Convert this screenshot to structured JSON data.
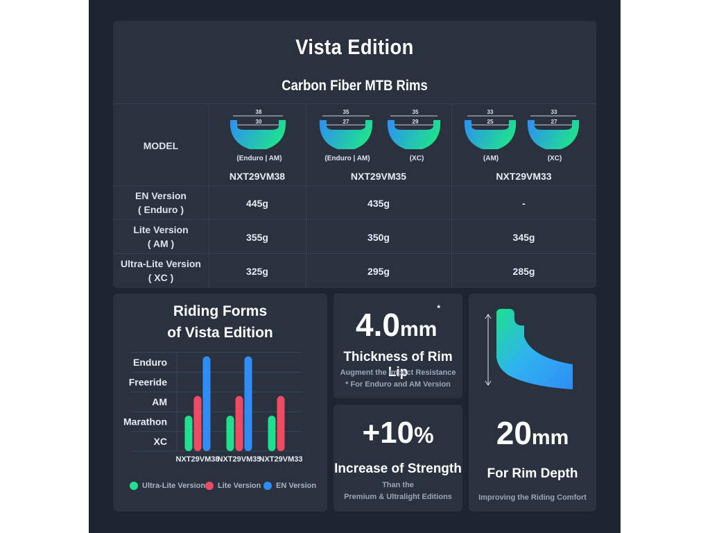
{
  "poster": {
    "title": "Vista Edition",
    "subtitle": "Carbon Fiber MTB Rims"
  },
  "spec_table": {
    "model_header": "MODEL",
    "models": [
      {
        "name": "NXT29VM38",
        "rims": [
          {
            "outer": "38",
            "inner": "30",
            "use": "(Enduro | AM)"
          }
        ]
      },
      {
        "name": "NXT29VM35",
        "rims": [
          {
            "outer": "35",
            "inner": "27",
            "use": "(Enduro | AM)"
          },
          {
            "outer": "35",
            "inner": "29",
            "use": "(XC)"
          }
        ]
      },
      {
        "name": "NXT29VM33",
        "rims": [
          {
            "outer": "33",
            "inner": "25",
            "use": "(AM)"
          },
          {
            "outer": "33",
            "inner": "27",
            "use": "(XC)"
          }
        ]
      }
    ],
    "rows": [
      {
        "label1": "EN Version",
        "label2": "( Enduro )",
        "values": [
          "445g",
          "435g",
          "-"
        ]
      },
      {
        "label1": "Lite Version",
        "label2": "( AM )",
        "values": [
          "355g",
          "350g",
          "345g"
        ]
      },
      {
        "label1": "Ultra-Lite Version",
        "label2": "( XC )",
        "values": [
          "325g",
          "295g",
          "285g"
        ]
      }
    ]
  },
  "chart_data": {
    "type": "bar",
    "title": "Riding Forms of Vista Edition",
    "title_line1": "Riding Forms",
    "title_line2": "of Vista Edition",
    "categories": [
      "NXT29VM38",
      "NXT29VM35",
      "NXT29VM33"
    ],
    "y_levels": [
      "XC",
      "Marathon",
      "AM",
      "Freeride",
      "Enduro"
    ],
    "series": [
      {
        "name": "Ultra-Lite Version",
        "color": "#1ee08f",
        "values": [
          "Marathon",
          "Marathon",
          "Marathon"
        ]
      },
      {
        "name": "Lite Version",
        "color": "#ef4a63",
        "values": [
          "AM",
          "AM",
          "AM"
        ]
      },
      {
        "name": "EN Version",
        "color": "#2f8df5",
        "values": [
          "Enduro",
          "Enduro",
          null
        ]
      }
    ],
    "grid": true,
    "legend": "bottom"
  },
  "features": {
    "lip": {
      "value": "4.0",
      "unit": "mm",
      "asterisk": "*",
      "headline": "Thickness of Rim Lip",
      "line1": "Augment the Impact Resistance",
      "line2": "* For Enduro and AM Version"
    },
    "strength": {
      "value": "+10",
      "unit": "%",
      "headline": "Increase of Strength",
      "line1": "Than the",
      "line2": "Premium & Ultralight Editions"
    },
    "depth": {
      "value": "20",
      "unit": "mm",
      "headline": "For Rim Depth",
      "line1": "Improving the Riding Comfort"
    }
  },
  "colors": {
    "accent_green": "#1ee08f",
    "accent_blue": "#2f8df5",
    "accent_red": "#ef4a63",
    "card_bg": "#2a3240",
    "page_bg": "#1e2530"
  }
}
